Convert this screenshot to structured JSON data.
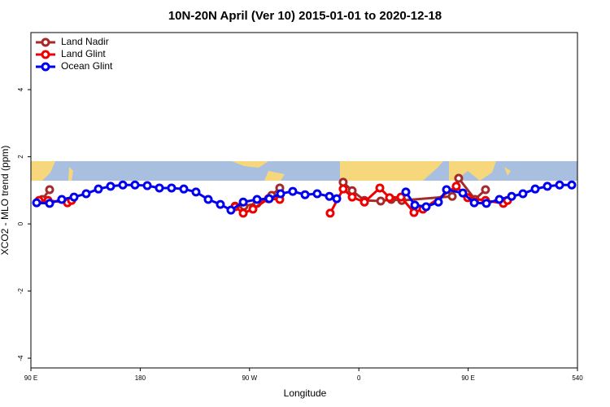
{
  "chart_data": {
    "type": "line",
    "title": "10N-20N April (Ver 10)   2015-01-01 to 2020-12-18",
    "x_label": "Longitude",
    "y_label": "XCO2 - MLO trend (ppm)",
    "xlim": [
      90,
      540
    ],
    "ylim": [
      -4.29,
      5.7
    ],
    "xticks": [
      {
        "value": 90,
        "label": "90 E"
      },
      180,
      {
        "value": 270,
        "label": "90 W"
      },
      {
        "value": 360,
        "label": "0"
      },
      {
        "value": 450,
        "label": "90 E"
      },
      540
    ],
    "yticks": [
      -4,
      -2,
      0,
      2,
      4
    ],
    "legend": "top-left",
    "series": [
      {
        "name": "Land Nadir",
        "color": "#a52a2a",
        "x": [
          99.4,
          105.4,
          null,
          258.1,
          265.4,
          276.2,
          288.2,
          294.9,
          null,
          347.1,
          354.5,
          364.6,
          378,
          386.7,
          395.4,
          436.9,
          442.2,
          455.6,
          464.3
        ],
        "values": [
          0.73,
          1.02,
          null,
          0.53,
          0.53,
          0.61,
          0.85,
          1.07,
          null,
          1.24,
          0.99,
          0.7,
          0.68,
          0.73,
          0.7,
          0.82,
          1.36,
          0.73,
          1.02
        ]
      },
      {
        "name": "Land Glint",
        "color": "#ee0000",
        "x": [
          96.7,
          104.1,
          120.1,
          123.5,
          null,
          258.1,
          264.8,
          272.8,
          285.5,
          294.9,
          null,
          336.4,
          347.1,
          354.5,
          364.6,
          377.3,
          385.3,
          394.7,
          405.4,
          412.8,
          440.2,
          449.6,
          464.3,
          479,
          482.4
        ],
        "values": [
          0.7,
          0.7,
          0.63,
          0.7,
          null,
          0.51,
          0.32,
          0.44,
          0.75,
          0.73,
          null,
          0.32,
          1.04,
          0.8,
          0.65,
          1.07,
          0.78,
          0.8,
          0.34,
          0.44,
          1.12,
          0.78,
          0.7,
          0.61,
          0.7
        ]
      },
      {
        "name": "Ocean Glint",
        "color": "#0000ee",
        "x": [
          94.7,
          105.4,
          115.4,
          125.5,
          135.5,
          145.6,
          155.6,
          165.7,
          175.7,
          185.8,
          195.8,
          205.8,
          215.9,
          225.9,
          236,
          246,
          254.7,
          264.8,
          276.2,
          286.2,
          295.6,
          305.6,
          315.7,
          325.7,
          335.8,
          341.8,
          null,
          398.7,
          406.1,
          415.4,
          425.5,
          432.2,
          445.6,
          455,
          465,
          475.7,
          485.8,
          495.1,
          505.2,
          515.2,
          525.3,
          535.3
        ],
        "values": [
          0.63,
          0.61,
          0.73,
          0.8,
          0.9,
          1.04,
          1.12,
          1.16,
          1.16,
          1.14,
          1.07,
          1.07,
          1.04,
          0.95,
          0.73,
          0.58,
          0.41,
          0.65,
          0.73,
          0.75,
          0.9,
          0.97,
          0.87,
          0.9,
          0.82,
          0.75,
          null,
          0.95,
          0.56,
          0.51,
          0.65,
          1.02,
          0.92,
          0.63,
          0.61,
          0.73,
          0.82,
          0.9,
          1.04,
          1.12,
          1.16,
          1.16
        ]
      }
    ]
  }
}
